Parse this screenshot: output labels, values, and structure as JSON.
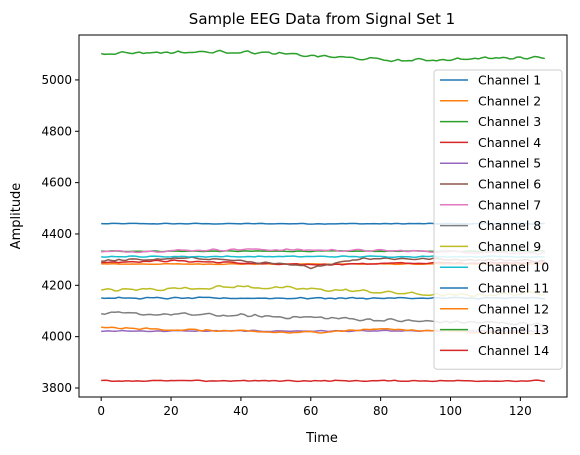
{
  "chart_data": {
    "type": "line",
    "title": "Sample EEG Data from Signal Set 1",
    "xlabel": "Time",
    "ylabel": "Amplitude",
    "xlim": [
      -6.35,
      133.35
    ],
    "ylim": [
      3765,
      5175
    ],
    "xticks": [
      0,
      20,
      40,
      60,
      80,
      100,
      120
    ],
    "yticks": [
      3800,
      4000,
      4200,
      4400,
      4600,
      4800,
      5000
    ],
    "grid": false,
    "legend_position": "right",
    "n_points": 128,
    "series": [
      {
        "name": "Channel 1",
        "color": "#1f77b4",
        "base": 4440,
        "noise": 2,
        "drift": [
          [
            0,
            0
          ],
          [
            127,
            0
          ]
        ]
      },
      {
        "name": "Channel 2",
        "color": "#ff7f0e",
        "base": 4283,
        "noise": 2,
        "drift": [
          [
            0,
            0
          ],
          [
            127,
            0
          ]
        ]
      },
      {
        "name": "Channel 3",
        "color": "#2ca02c",
        "base": 4333,
        "noise": 2,
        "drift": [
          [
            0,
            0
          ],
          [
            127,
            0
          ]
        ]
      },
      {
        "name": "Channel 4",
        "color": "#d62728",
        "base": 4290,
        "noise": 4,
        "drift": [
          [
            0,
            0
          ],
          [
            20,
            6
          ],
          [
            55,
            -10
          ],
          [
            80,
            -5
          ],
          [
            127,
            0
          ]
        ]
      },
      {
        "name": "Channel 5",
        "color": "#9467bd",
        "base": 4022,
        "noise": 3,
        "drift": [
          [
            0,
            0
          ],
          [
            127,
            0
          ]
        ]
      },
      {
        "name": "Channel 6",
        "color": "#8c564b",
        "base": 4296,
        "noise": 6,
        "drift": [
          [
            0,
            0
          ],
          [
            30,
            10
          ],
          [
            60,
            -25
          ],
          [
            75,
            10
          ],
          [
            127,
            0
          ]
        ]
      },
      {
        "name": "Channel 7",
        "color": "#e377c2",
        "base": 4330,
        "noise": 5,
        "drift": [
          [
            0,
            0
          ],
          [
            40,
            10
          ],
          [
            80,
            5
          ],
          [
            127,
            -5
          ]
        ]
      },
      {
        "name": "Channel 8",
        "color": "#7f7f7f",
        "base": 4080,
        "noise": 8,
        "drift": [
          [
            0,
            10
          ],
          [
            30,
            5
          ],
          [
            60,
            -5
          ],
          [
            90,
            -20
          ],
          [
            127,
            -30
          ]
        ]
      },
      {
        "name": "Channel 9",
        "color": "#bcbd22",
        "base": 4180,
        "noise": 8,
        "drift": [
          [
            0,
            0
          ],
          [
            40,
            15
          ],
          [
            70,
            0
          ],
          [
            100,
            -20
          ],
          [
            127,
            -10
          ]
        ]
      },
      {
        "name": "Channel 10",
        "color": "#17becf",
        "base": 4312,
        "noise": 3,
        "drift": [
          [
            0,
            0
          ],
          [
            127,
            0
          ]
        ]
      },
      {
        "name": "Channel 11",
        "color": "#1f77b4",
        "base": 4150,
        "noise": 4,
        "drift": [
          [
            0,
            0
          ],
          [
            127,
            0
          ]
        ]
      },
      {
        "name": "Channel 12",
        "color": "#ff7f0e",
        "base": 4030,
        "noise": 5,
        "drift": [
          [
            0,
            5
          ],
          [
            56,
            -15
          ],
          [
            80,
            0
          ],
          [
            127,
            -20
          ]
        ]
      },
      {
        "name": "Channel 13",
        "color": "#2ca02c",
        "base": 5095,
        "noise": 7,
        "drift": [
          [
            0,
            10
          ],
          [
            40,
            15
          ],
          [
            85,
            -20
          ],
          [
            127,
            -5
          ]
        ]
      },
      {
        "name": "Channel 14",
        "color": "#d62728",
        "base": 3828,
        "noise": 3,
        "drift": [
          [
            0,
            0
          ],
          [
            127,
            0
          ]
        ]
      }
    ]
  }
}
